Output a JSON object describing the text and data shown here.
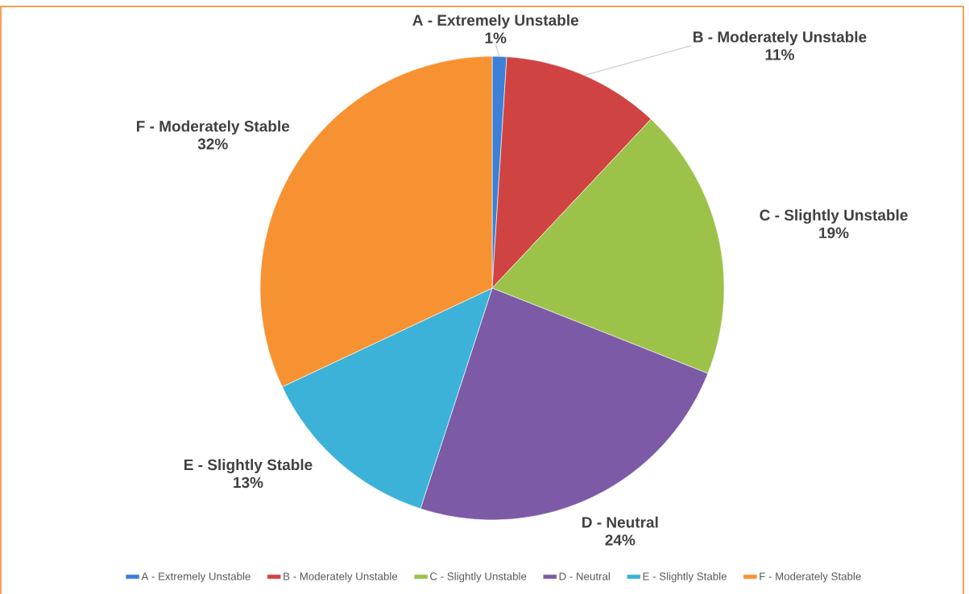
{
  "chart_data": {
    "type": "pie",
    "categories": [
      "A - Extremely Unstable",
      "B - Moderately Unstable",
      "C - Slightly Unstable",
      "D - Neutral",
      "E - Slightly Stable",
      "F - Moderately Stable"
    ],
    "values": [
      1,
      11,
      19,
      24,
      13,
      32
    ],
    "value_labels": [
      "1%",
      "11%",
      "19%",
      "24%",
      "13%",
      "32%"
    ],
    "colors": [
      "#3c80d8",
      "#d04343",
      "#9cc24a",
      "#7c5aa6",
      "#3cb2d8",
      "#f79232"
    ],
    "legend": "bottom"
  }
}
